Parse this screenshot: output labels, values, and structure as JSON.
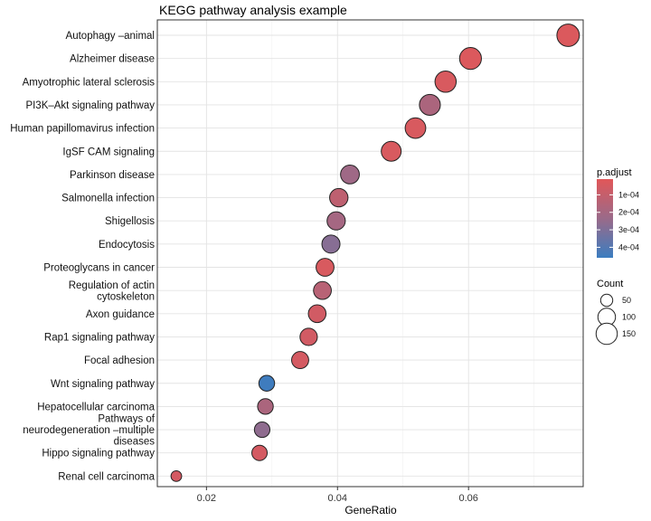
{
  "chart_data": {
    "type": "scatter",
    "title": "KEGG pathway analysis example",
    "xlabel": "GeneRatio",
    "ylabel": "",
    "xlim": [
      0.0125,
      0.0775
    ],
    "xticks": [
      0.02,
      0.04,
      0.06
    ],
    "xtick_labels": [
      "0.02",
      "0.04",
      "0.06"
    ],
    "grid": true,
    "categories": [
      [
        "Autophagy –animal"
      ],
      [
        "Alzheimer disease"
      ],
      [
        "Amyotrophic lateral sclerosis"
      ],
      [
        "PI3K–Akt signaling pathway"
      ],
      [
        "Human papillomavirus infection"
      ],
      [
        "IgSF CAM signaling"
      ],
      [
        "Parkinson disease"
      ],
      [
        "Salmonella infection"
      ],
      [
        "Shigellosis"
      ],
      [
        "Endocytosis"
      ],
      [
        "Proteoglycans in cancer"
      ],
      [
        "Regulation of actin",
        "cytoskeleton"
      ],
      [
        "Axon guidance"
      ],
      [
        "Rap1 signaling pathway"
      ],
      [
        "Focal adhesion"
      ],
      [
        "Wnt signaling pathway"
      ],
      [
        "Hepatocellular carcinoma"
      ],
      [
        "Pathways of",
        "neurodegeneration –multiple",
        "diseases"
      ],
      [
        "Hippo signaling pathway"
      ],
      [
        "Renal cell carcinoma"
      ]
    ],
    "x": [
      0.0752,
      0.0603,
      0.0565,
      0.0541,
      0.0519,
      0.0482,
      0.0419,
      0.0402,
      0.0398,
      0.039,
      0.0381,
      0.0377,
      0.0369,
      0.0356,
      0.0343,
      0.0292,
      0.029,
      0.0285,
      0.0281,
      0.0154
    ],
    "count": [
      170,
      160,
      150,
      145,
      140,
      130,
      115,
      110,
      108,
      106,
      104,
      103,
      101,
      97,
      94,
      80,
      79,
      78,
      76,
      42
    ],
    "p_adjust": [
      3e-05,
      3e-05,
      4e-05,
      0.00018,
      4e-05,
      4e-05,
      0.00022,
      0.00012,
      0.0002,
      0.00028,
      4e-05,
      0.00014,
      6e-05,
      6e-05,
      5e-05,
      0.00045,
      0.00018,
      0.00026,
      5e-05,
      5e-05
    ],
    "legend_color": {
      "title": "p.adjust",
      "ticks": [
        0.0001,
        0.0002,
        0.0003,
        0.0004
      ],
      "tick_labels": [
        "1e-04",
        "2e-04",
        "3e-04",
        "4e-04"
      ],
      "range": [
        1e-05,
        0.00046
      ],
      "low_color": "#e15759",
      "high_color": "#3b7dc0"
    },
    "legend_size": {
      "title": "Count",
      "values": [
        50,
        100,
        150
      ],
      "labels": [
        "50",
        "100",
        "150"
      ]
    },
    "legend_position": "right"
  }
}
